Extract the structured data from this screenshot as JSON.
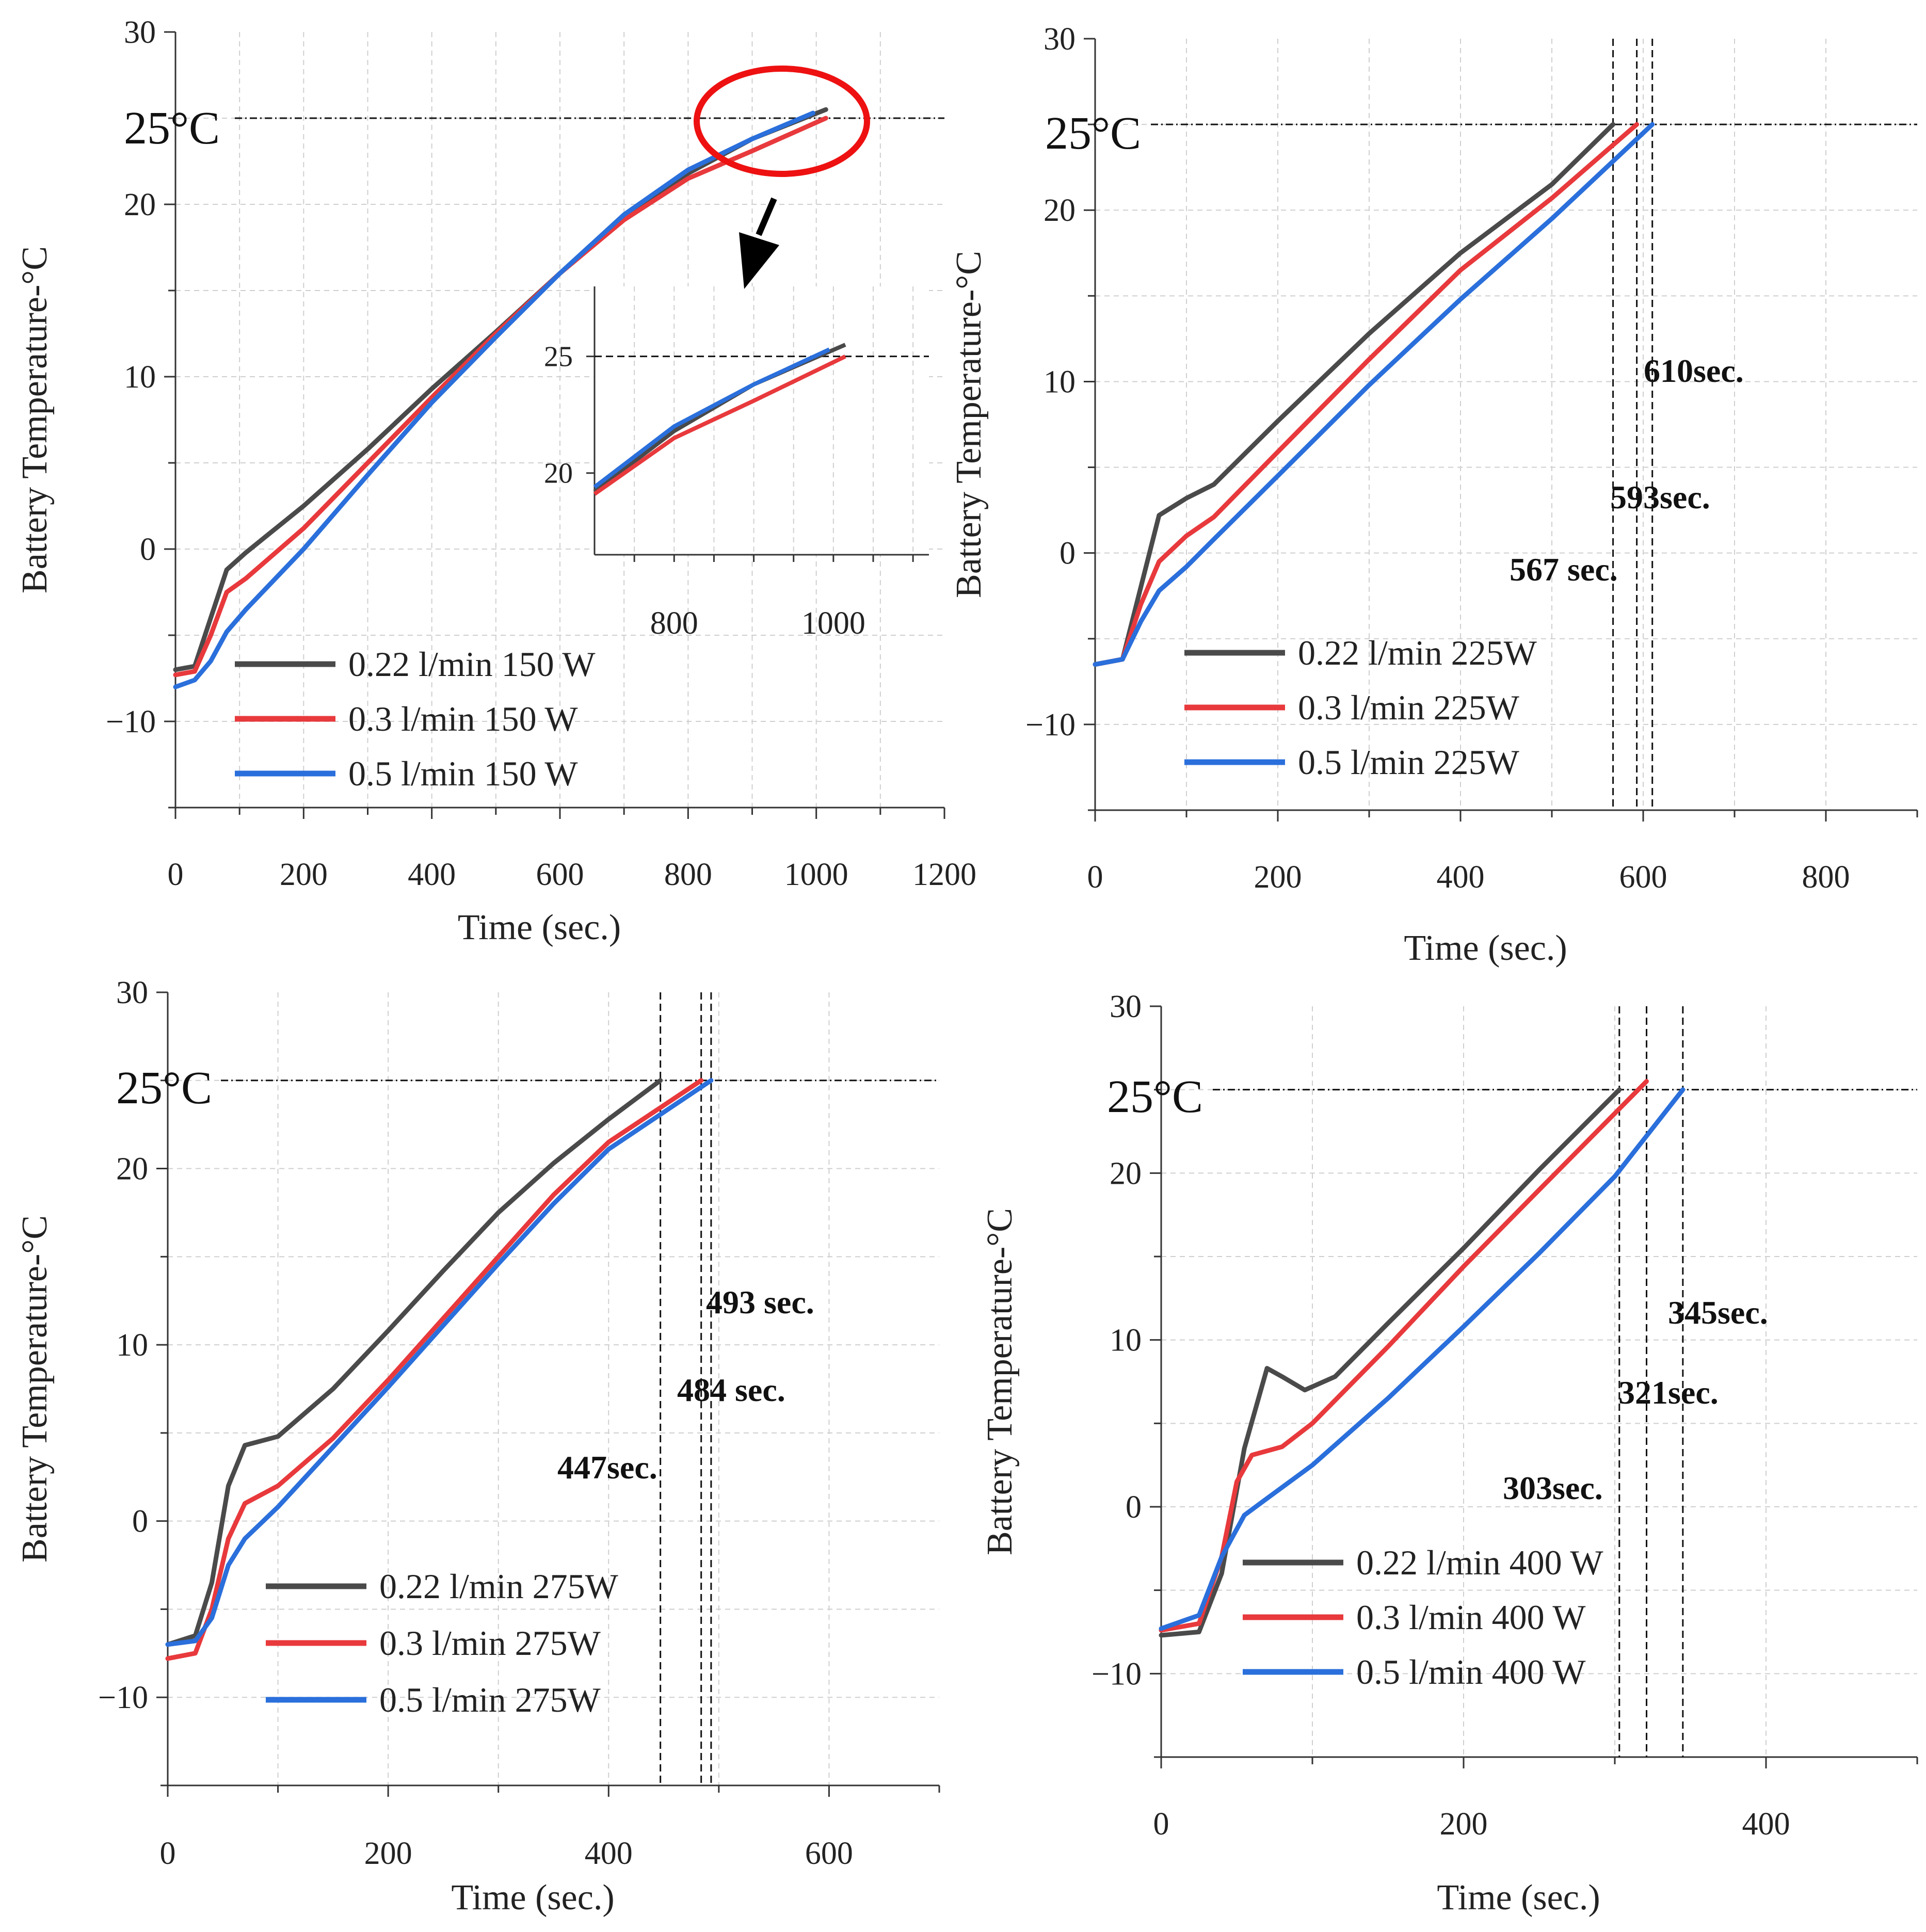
{
  "colors": {
    "black": "#4a4a4a",
    "red": "#e8393c",
    "blue": "#2a6fdb",
    "ellipse": "#ee1111"
  },
  "threshold_label": "25°C",
  "chart_data": [
    {
      "type": "line",
      "xlabel": "Time (sec.)",
      "ylabel": "Battery Temperature-°C",
      "xlim": [
        0,
        1200
      ],
      "ylim": [
        -15,
        30
      ],
      "xticks": [
        "0",
        "200",
        "400",
        "600",
        "800",
        "1000",
        "1200"
      ],
      "yticks": [
        "−10",
        "0",
        "10",
        "20",
        "30"
      ],
      "threshold": 25,
      "series": [
        {
          "name": "0.22 l/min 150 W",
          "color": "black",
          "x": [
            0,
            30,
            55,
            80,
            110,
            200,
            300,
            400,
            500,
            600,
            700,
            800,
            900,
            1015
          ],
          "y": [
            -7,
            -6.8,
            -4,
            -1.2,
            -0.2,
            2.5,
            5.8,
            9.3,
            12.6,
            16,
            19.2,
            21.8,
            23.8,
            25.5
          ]
        },
        {
          "name": "0.3 l/min 150 W",
          "color": "red",
          "x": [
            0,
            30,
            55,
            80,
            110,
            200,
            300,
            400,
            500,
            600,
            700,
            800,
            900,
            1015
          ],
          "y": [
            -7.3,
            -7.1,
            -5,
            -2.5,
            -1.7,
            1.2,
            5,
            8.8,
            12.5,
            16,
            19.1,
            21.5,
            23.1,
            25
          ]
        },
        {
          "name": "0.5 l/min 150 W",
          "color": "blue",
          "x": [
            0,
            30,
            55,
            80,
            110,
            200,
            300,
            400,
            500,
            600,
            700,
            800,
            900,
            995
          ],
          "y": [
            -8,
            -7.6,
            -6.5,
            -4.8,
            -3.5,
            0,
            4.3,
            8.5,
            12.3,
            16,
            19.4,
            22,
            23.8,
            25.3
          ]
        }
      ],
      "inset": {
        "xlim": [
          700,
          1120
        ],
        "ylim": [
          16.5,
          28
        ],
        "xticks": [
          "800",
          "1000"
        ],
        "yticks": [
          "20",
          "25"
        ],
        "threshold": 25
      }
    },
    {
      "type": "line",
      "xlabel": "Time (sec.)",
      "ylabel": "Battery Temperature-°C",
      "xlim": [
        0,
        900
      ],
      "ylim": [
        -15,
        30
      ],
      "xticks": [
        "0",
        "200",
        "400",
        "600",
        "800"
      ],
      "yticks": [
        "−10",
        "0",
        "10",
        "20",
        "30"
      ],
      "threshold": 25,
      "annotations": [
        "610sec.",
        "593sec.",
        "567 sec."
      ],
      "markers": [
        567,
        593,
        610
      ],
      "series": [
        {
          "name": "0.22 l/min 225W",
          "color": "black",
          "x": [
            0,
            30,
            50,
            70,
            100,
            130,
            200,
            300,
            400,
            500,
            567
          ],
          "y": [
            -6.5,
            -6.2,
            -2,
            2.2,
            3.2,
            4,
            7.7,
            12.8,
            17.5,
            21.5,
            25
          ]
        },
        {
          "name": "0.3 l/min 225W",
          "color": "red",
          "x": [
            0,
            30,
            50,
            70,
            100,
            130,
            200,
            300,
            400,
            500,
            593
          ],
          "y": [
            -6.5,
            -6.2,
            -3,
            -0.5,
            1,
            2.1,
            5.9,
            11.3,
            16.5,
            20.7,
            25
          ]
        },
        {
          "name": "0.5 l/min 225W",
          "color": "blue",
          "x": [
            0,
            30,
            50,
            70,
            100,
            130,
            200,
            300,
            400,
            500,
            610
          ],
          "y": [
            -6.5,
            -6.2,
            -4,
            -2.2,
            -0.8,
            0.8,
            4.5,
            9.8,
            14.8,
            19.5,
            25
          ]
        }
      ]
    },
    {
      "type": "line",
      "xlabel": "Time (sec.)",
      "ylabel": "Battery Temperature-°C",
      "xlim": [
        0,
        700
      ],
      "ylim": [
        -15,
        30
      ],
      "xticks": [
        "0",
        "200",
        "400",
        "600"
      ],
      "yticks": [
        "−10",
        "0",
        "10",
        "20",
        "30"
      ],
      "threshold": 25,
      "annotations": [
        "493 sec.",
        "484 sec.",
        "447sec."
      ],
      "markers": [
        447,
        484,
        493
      ],
      "series": [
        {
          "name": "0.22 l/min 275W",
          "color": "black",
          "x": [
            0,
            25,
            40,
            55,
            70,
            100,
            150,
            200,
            250,
            300,
            350,
            400,
            447
          ],
          "y": [
            -7,
            -6.5,
            -3.5,
            2,
            4.3,
            4.8,
            7.5,
            10.8,
            14.2,
            17.5,
            20.3,
            22.8,
            25
          ]
        },
        {
          "name": "0.3 l/min 275W",
          "color": "red",
          "x": [
            0,
            25,
            40,
            55,
            70,
            100,
            150,
            200,
            250,
            300,
            350,
            400,
            484
          ],
          "y": [
            -7.8,
            -7.5,
            -5,
            -1,
            1,
            2,
            4.7,
            8,
            11.5,
            15,
            18.5,
            21.5,
            25
          ]
        },
        {
          "name": "0.5 l/min 275W",
          "color": "blue",
          "x": [
            0,
            25,
            40,
            55,
            70,
            100,
            150,
            200,
            250,
            300,
            350,
            400,
            493
          ],
          "y": [
            -7,
            -6.8,
            -5.5,
            -2.5,
            -1,
            0.8,
            4.2,
            7.6,
            11.1,
            14.6,
            18,
            21.1,
            25
          ]
        }
      ]
    },
    {
      "type": "line",
      "xlabel": "Time (sec.)",
      "ylabel": "Battery Temperature-°C",
      "xlim": [
        0,
        500
      ],
      "ylim": [
        -15,
        30
      ],
      "xticks": [
        "0",
        "200",
        "400"
      ],
      "yticks": [
        "−10",
        "0",
        "10",
        "20",
        "30"
      ],
      "threshold": 25,
      "annotations": [
        "345sec.",
        "321sec.",
        "303sec."
      ],
      "markers": [
        303,
        321,
        345
      ],
      "series": [
        {
          "name": "0.22 l/min 400 W",
          "color": "black",
          "x": [
            0,
            25,
            40,
            55,
            70,
            80,
            95,
            115,
            150,
            200,
            250,
            303
          ],
          "y": [
            -7.7,
            -7.5,
            -4,
            3.5,
            8.3,
            7.8,
            7,
            7.8,
            11,
            15.5,
            20.2,
            25
          ]
        },
        {
          "name": "0.3 l/min 400 W",
          "color": "red",
          "x": [
            0,
            25,
            40,
            50,
            60,
            80,
            100,
            150,
            200,
            250,
            321
          ],
          "y": [
            -7.4,
            -7,
            -3,
            1.5,
            3.1,
            3.6,
            5,
            9.6,
            14.4,
            19,
            25.5
          ]
        },
        {
          "name": "0.5 l/min 400 W",
          "color": "blue",
          "x": [
            0,
            25,
            40,
            55,
            70,
            100,
            150,
            200,
            250,
            300,
            345
          ],
          "y": [
            -7.3,
            -6.5,
            -3,
            -0.5,
            0.5,
            2.5,
            6.5,
            10.8,
            15.2,
            19.8,
            25
          ]
        }
      ]
    }
  ]
}
